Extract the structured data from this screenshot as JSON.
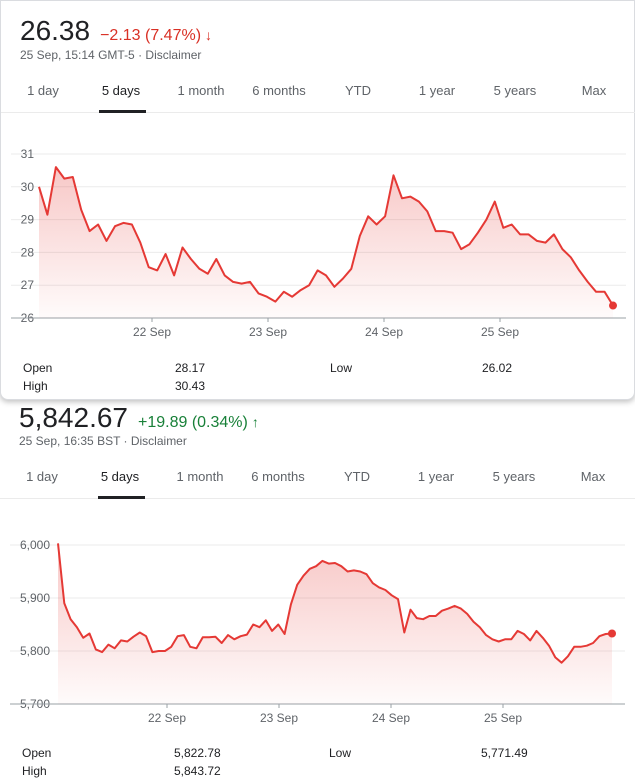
{
  "tabs": [
    "1 day",
    "5 days",
    "1 month",
    "6 months",
    "YTD",
    "1 year",
    "5 years",
    "Max"
  ],
  "colors": {
    "line": "#e53935",
    "negative": "#d93025",
    "positive": "#188038",
    "grid": "#ebebeb"
  },
  "quotes": [
    {
      "price": "26.38",
      "change": "−2.13 (7.47%)",
      "direction": "down",
      "arrow_icon": "↓",
      "meta": "25 Sep, 15:14 GMT-5 · Disclaimer",
      "active_tab": "5 days",
      "stats": {
        "open_label": "Open",
        "open": "28.17",
        "high_label": "High",
        "high": "30.43",
        "low_label": "Low",
        "low": "26.02"
      },
      "chart_data": {
        "type": "area",
        "ylim": [
          26,
          31
        ],
        "yticks": [
          "31",
          "30",
          "29",
          "28",
          "27",
          "26"
        ],
        "xticks": [
          "22 Sep",
          "23 Sep",
          "24 Sep",
          "25 Sep"
        ],
        "values": [
          30.0,
          29.15,
          30.6,
          30.25,
          30.3,
          29.3,
          28.65,
          28.85,
          28.35,
          28.8,
          28.9,
          28.85,
          28.3,
          27.55,
          27.45,
          27.95,
          27.3,
          28.15,
          27.8,
          27.5,
          27.35,
          27.8,
          27.3,
          27.1,
          27.05,
          27.1,
          26.75,
          26.65,
          26.5,
          26.8,
          26.65,
          26.85,
          27.0,
          27.45,
          27.3,
          26.95,
          27.2,
          27.5,
          28.5,
          29.1,
          28.85,
          29.1,
          30.35,
          29.65,
          29.7,
          29.55,
          29.25,
          28.65,
          28.65,
          28.6,
          28.1,
          28.25,
          28.6,
          29.0,
          29.55,
          28.75,
          28.85,
          28.55,
          28.55,
          28.35,
          28.3,
          28.55,
          28.1,
          27.85,
          27.45,
          27.1,
          26.8,
          26.8,
          26.38
        ]
      }
    },
    {
      "price": "5,842.67",
      "change": "+19.89 (0.34%)",
      "direction": "up",
      "arrow_icon": "↑",
      "meta": "25 Sep, 16:35 BST · Disclaimer",
      "active_tab": "5 days",
      "stats": {
        "open_label": "Open",
        "open": "5,822.78",
        "high_label": "High",
        "high": "5,843.72",
        "low_label": "Low",
        "low": "5,771.49"
      },
      "chart_data": {
        "type": "area",
        "ylim": [
          5700,
          6000
        ],
        "yticks": [
          "6,000",
          "5,900",
          "5,800",
          "5,700"
        ],
        "xticks": [
          "22 Sep",
          "23 Sep",
          "24 Sep",
          "25 Sep"
        ],
        "values": [
          6003,
          5890,
          5860,
          5845,
          5825,
          5833,
          5803,
          5798,
          5812,
          5805,
          5820,
          5818,
          5827,
          5835,
          5828,
          5798,
          5800,
          5800,
          5808,
          5828,
          5830,
          5808,
          5805,
          5826,
          5826,
          5827,
          5815,
          5830,
          5822,
          5828,
          5831,
          5850,
          5845,
          5858,
          5838,
          5850,
          5832,
          5888,
          5925,
          5942,
          5955,
          5960,
          5970,
          5965,
          5966,
          5960,
          5950,
          5952,
          5950,
          5945,
          5928,
          5920,
          5915,
          5905,
          5898,
          5835,
          5878,
          5862,
          5860,
          5866,
          5866,
          5876,
          5880,
          5885,
          5880,
          5870,
          5855,
          5845,
          5830,
          5822,
          5818,
          5822,
          5822,
          5838,
          5832,
          5820,
          5838,
          5825,
          5810,
          5788,
          5778,
          5790,
          5808,
          5808,
          5810,
          5815,
          5828,
          5832,
          5833
        ]
      }
    }
  ]
}
